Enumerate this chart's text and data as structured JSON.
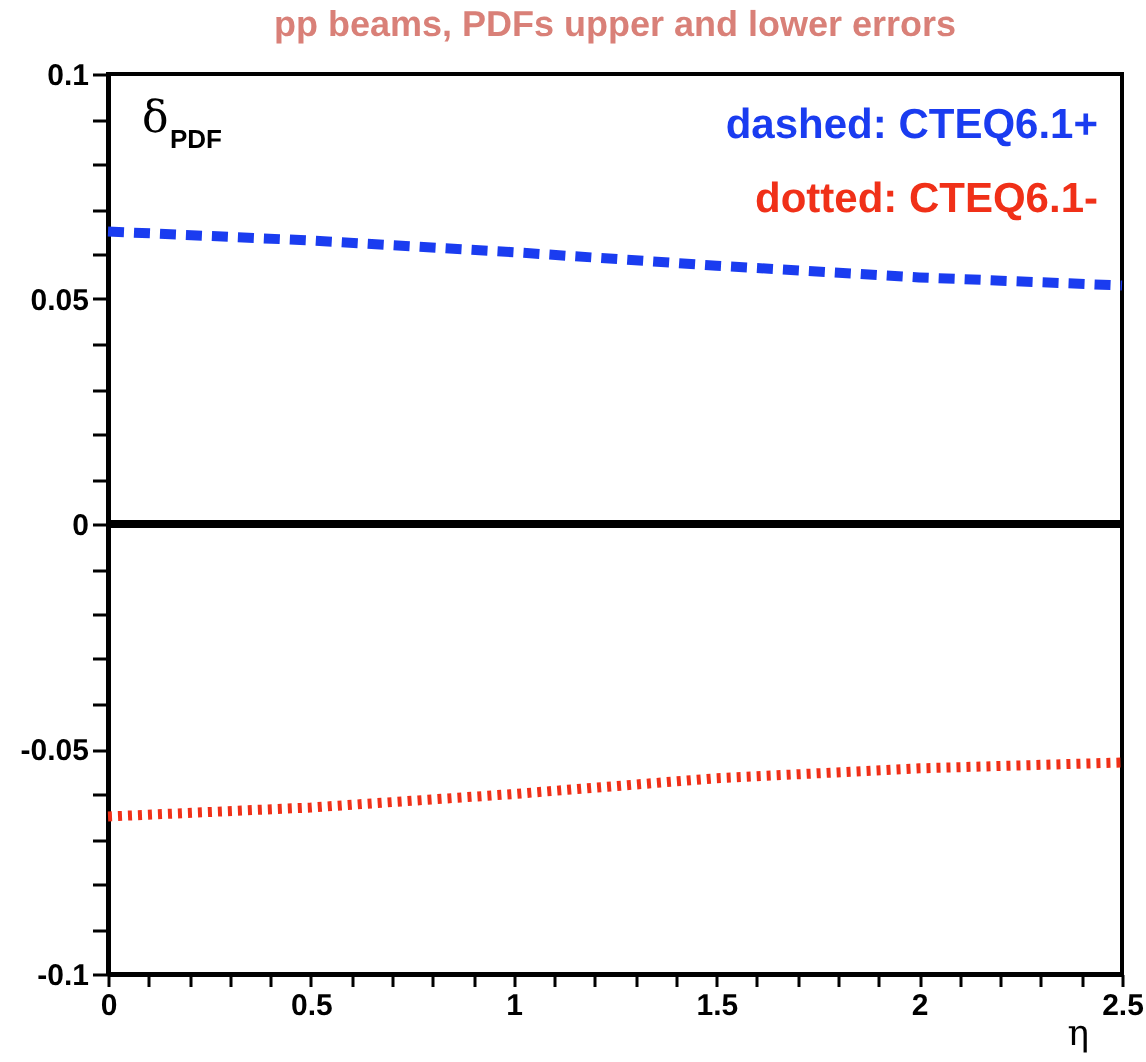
{
  "chart_data": {
    "type": "line",
    "title": "pp beams, PDFs upper and lower errors",
    "xlabel": "η",
    "ylabel": "δ$_{PDF}$",
    "x": [
      0,
      0.5,
      1,
      1.5,
      2,
      2.5
    ],
    "series": [
      {
        "name": "dashed: CTEQ6.1+",
        "color": "#1a3cf0",
        "line_style": "dashed",
        "values": [
          0.065,
          0.063,
          0.0604,
          0.0574,
          0.0548,
          0.053
        ]
      },
      {
        "name": "dotted: CTEQ6.1-",
        "color": "#f03018",
        "line_style": "dotted",
        "values": [
          -0.065,
          -0.063,
          -0.06,
          -0.0565,
          -0.0543,
          -0.053
        ]
      }
    ],
    "xlim": [
      0,
      2.5
    ],
    "ylim": [
      -0.1,
      0.1
    ],
    "xticks": [
      0,
      {
        "value": 0.1,
        "label": null
      },
      {
        "value": 0.2,
        "label": null
      },
      {
        "value": 0.3,
        "label": null
      },
      {
        "value": 0.4,
        "label": null
      },
      0.5,
      {
        "value": 0.6,
        "label": null
      },
      {
        "value": 0.7,
        "label": null
      },
      {
        "value": 0.8,
        "label": null
      },
      {
        "value": 0.9,
        "label": null
      },
      1,
      {
        "value": 1.1,
        "label": null
      },
      {
        "value": 1.2,
        "label": null
      },
      {
        "value": 1.3,
        "label": null
      },
      {
        "value": 1.4,
        "label": null
      },
      1.5,
      {
        "value": 1.6,
        "label": null
      },
      {
        "value": 1.7,
        "label": null
      },
      {
        "value": 1.8,
        "label": null
      },
      {
        "value": 1.9,
        "label": null
      },
      2,
      {
        "value": 2.1,
        "label": null
      },
      {
        "value": 2.2,
        "label": null
      },
      {
        "value": 2.3,
        "label": null
      },
      {
        "value": 2.4,
        "label": null
      },
      2.5
    ],
    "yticks": [
      -0.1,
      {
        "value": -0.09,
        "label": null
      },
      {
        "value": -0.08,
        "label": null
      },
      {
        "value": -0.07,
        "label": null
      },
      {
        "value": -0.06,
        "label": null
      },
      -0.05,
      {
        "value": -0.04,
        "label": null
      },
      {
        "value": -0.03,
        "label": null
      },
      {
        "value": -0.02,
        "label": null
      },
      {
        "value": -0.01,
        "label": null
      },
      0,
      {
        "value": 0.01,
        "label": null
      },
      {
        "value": 0.02,
        "label": null
      },
      {
        "value": 0.03,
        "label": null
      },
      {
        "value": 0.04,
        "label": null
      },
      0.05,
      {
        "value": 0.06,
        "label": null
      },
      {
        "value": 0.07,
        "label": null
      },
      {
        "value": 0.08,
        "label": null
      },
      {
        "value": 0.09,
        "label": null
      },
      0.1
    ],
    "ref_lines": [
      {
        "axis": "y",
        "value": 0,
        "color": "#000000"
      }
    ],
    "legend": "top right",
    "marker": "none",
    "grid": false
  }
}
